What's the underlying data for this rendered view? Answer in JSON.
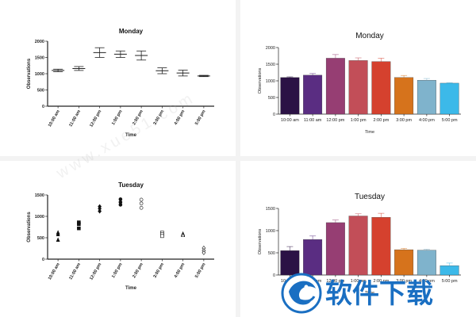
{
  "colors": {
    "bars": [
      "#2b1245",
      "#5a2d82",
      "#963e73",
      "#c24e58",
      "#d5412e",
      "#d6731c",
      "#7fb3cc",
      "#3cb9e9"
    ],
    "axis": "#222222",
    "logo_blue": "#1a6fc2"
  },
  "watermark": {
    "text": "www.xue51.com"
  },
  "logo": {
    "text": "软件下载"
  },
  "chart_data": [
    {
      "id": "monday-errorbar",
      "type": "scatter",
      "title": "Monday",
      "xlabel": "Time",
      "ylabel": "Observations",
      "categories": [
        "10:00 am",
        "11:00 am",
        "12:00 pm",
        "1:00 pm",
        "2:00 pm",
        "3:00 pm",
        "4:00 pm",
        "5:00 pm"
      ],
      "values": [
        1100,
        1160,
        1650,
        1600,
        1560,
        1090,
        1020,
        930
      ],
      "errors": [
        40,
        60,
        150,
        100,
        140,
        90,
        90,
        20
      ],
      "yticks": [
        0,
        500,
        1000,
        1500,
        2000
      ],
      "ylim": [
        0,
        2000
      ]
    },
    {
      "id": "monday-bar",
      "type": "bar",
      "title": "Monday",
      "xlabel": "Time",
      "ylabel": "Observations",
      "categories": [
        "10:00 am",
        "11:00 am",
        "12:00 pm",
        "1:00 pm",
        "2:00 pm",
        "3:00 pm",
        "4:00 pm",
        "5:00 pm"
      ],
      "values": [
        1100,
        1170,
        1680,
        1610,
        1580,
        1100,
        1020,
        930
      ],
      "errors": [
        20,
        50,
        110,
        80,
        100,
        60,
        50,
        15
      ],
      "yticks": [
        0,
        500,
        1000,
        1500,
        2000
      ],
      "ylim": [
        0,
        2000
      ]
    },
    {
      "id": "tuesday-scatter",
      "type": "scatter",
      "title": "Tuesday",
      "xlabel": "Time",
      "ylabel": "Observations",
      "categories": [
        "10:00 am",
        "11:00 am",
        "12:00 pm",
        "1:00 pm",
        "2:00 pm",
        "3:00 pm",
        "4:00 pm",
        "5:00 pm"
      ],
      "points": [
        {
          "marker": "triangle",
          "filled": true,
          "values": [
            620,
            580,
            450
          ]
        },
        {
          "marker": "square",
          "filled": true,
          "values": [
            860,
            820,
            720
          ]
        },
        {
          "marker": "diamond",
          "filled": true,
          "values": [
            1230,
            1180,
            1120
          ]
        },
        {
          "marker": "circle",
          "filled": true,
          "values": [
            1400,
            1330,
            1270
          ]
        },
        {
          "marker": "circle",
          "filled": false,
          "values": [
            1390,
            1300,
            1200
          ]
        },
        {
          "marker": "square",
          "filled": false,
          "values": [
            620,
            580,
            540
          ]
        },
        {
          "marker": "triangle",
          "filled": false,
          "values": [
            590,
            570,
            560
          ]
        },
        {
          "marker": "diamond",
          "filled": false,
          "values": [
            260,
            200,
            150
          ]
        }
      ],
      "yticks": [
        0,
        500,
        1000,
        1500
      ],
      "ylim": [
        0,
        1500
      ]
    },
    {
      "id": "tuesday-bar",
      "type": "bar",
      "title": "Tuesday",
      "xlabel": "Time",
      "ylabel": "Observations",
      "categories": [
        "10:00 am",
        "11:00 am",
        "12:00 pm",
        "1:00 pm",
        "2:00 pm",
        "3:00 pm",
        "4:00 pm",
        "5:00 pm"
      ],
      "values": [
        550,
        800,
        1180,
        1330,
        1300,
        570,
        560,
        210
      ],
      "errors": [
        90,
        80,
        60,
        50,
        90,
        30,
        20,
        60
      ],
      "yticks": [
        0,
        500,
        1000,
        1500
      ],
      "ylim": [
        0,
        1500
      ]
    }
  ]
}
